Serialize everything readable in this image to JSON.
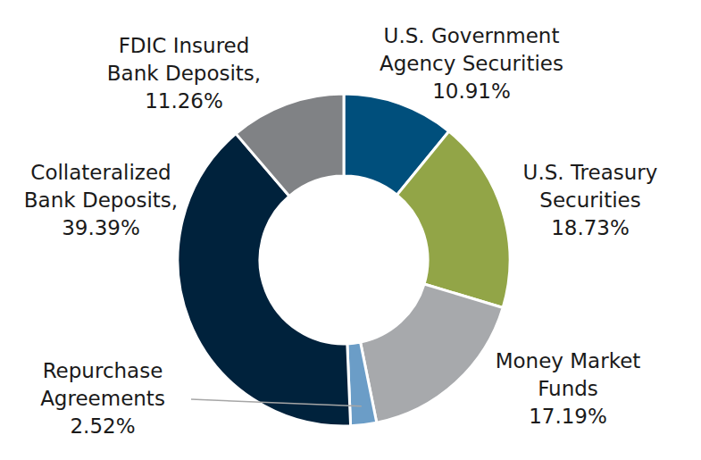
{
  "chart_data": {
    "type": "pie",
    "categories": [
      "U.S. Government Agency Securities",
      "U.S. Treasury Securities",
      "Money Market Funds",
      "Repurchase Agreements",
      "Collateralized Bank Deposits,",
      "FDIC Insured Bank Deposits,"
    ],
    "values": [
      10.91,
      18.73,
      17.19,
      2.52,
      39.39,
      11.26
    ],
    "value_labels": [
      "10.91%",
      "18.73%",
      "17.19%",
      "2.52%",
      "39.39%",
      "11.26%"
    ],
    "colors": [
      "#004f7c",
      "#92a547",
      "#a7a9ac",
      "#6b9dc7",
      "#00223c",
      "#808285"
    ],
    "data_labels": true
  }
}
